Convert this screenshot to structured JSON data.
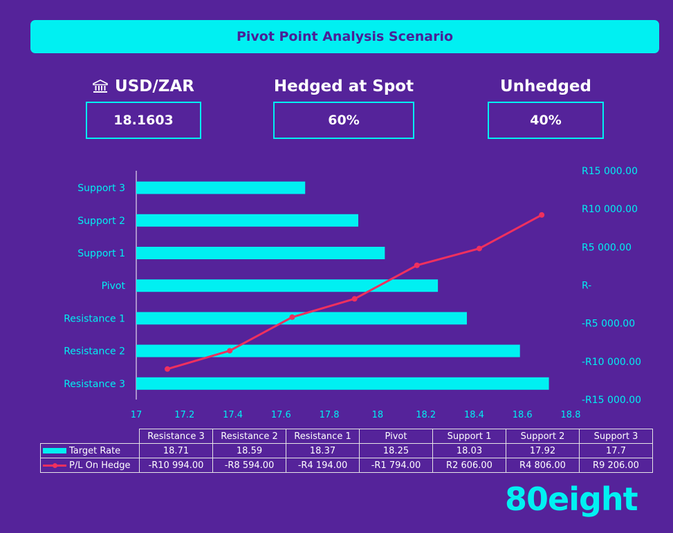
{
  "header": {
    "title": "Pivot Point Analysis Scenario"
  },
  "stats": [
    {
      "label": "USD/ZAR",
      "value": "18.1603",
      "icon": "bank-icon"
    },
    {
      "label": "Hedged at Spot",
      "value": "60%"
    },
    {
      "label": "Unhedged",
      "value": "40%"
    }
  ],
  "chart_data": {
    "type": "bar",
    "orientation": "horizontal",
    "categories": [
      "Resistance 3",
      "Resistance 2",
      "Resistance 1",
      "Pivot",
      "Support 1",
      "Support 2",
      "Support 3"
    ],
    "series": [
      {
        "name": "Target Rate",
        "type": "bar",
        "values": [
          18.71,
          18.59,
          18.37,
          18.25,
          18.03,
          17.92,
          17.7
        ],
        "labels": [
          "18.71",
          "18.59",
          "18.37",
          "18.25",
          "18.03",
          "17.92",
          "17.7"
        ]
      },
      {
        "name": "P/L On Hedge",
        "type": "line",
        "values": [
          -10994,
          -8594,
          -4194,
          -1794,
          2606,
          4806,
          9206
        ],
        "labels": [
          "-R10 994.00",
          "-R8 594.00",
          "-R4 194.00",
          "-R1 794.00",
          "R2 606.00",
          "R4 806.00",
          "R9 206.00"
        ]
      }
    ],
    "x_axis": {
      "min": 17,
      "max": 18.8,
      "ticks": [
        "17",
        "17.2",
        "17.4",
        "17.6",
        "17.8",
        "18",
        "18.2",
        "18.4",
        "18.6",
        "18.8"
      ]
    },
    "y2_axis": {
      "min": -15000,
      "max": 15000,
      "ticks": [
        "R15 000.00",
        "R10 000.00",
        "R5 000.00",
        "R-",
        "-R5 000.00",
        "-R10 000.00",
        "-R15 000.00"
      ]
    },
    "grid": false,
    "legend": "bottom-table",
    "colors": {
      "bar": "#00f0f2",
      "line": "#f0305e",
      "axis_text": "#00f0f2"
    }
  },
  "logo": {
    "text": "80eight"
  }
}
